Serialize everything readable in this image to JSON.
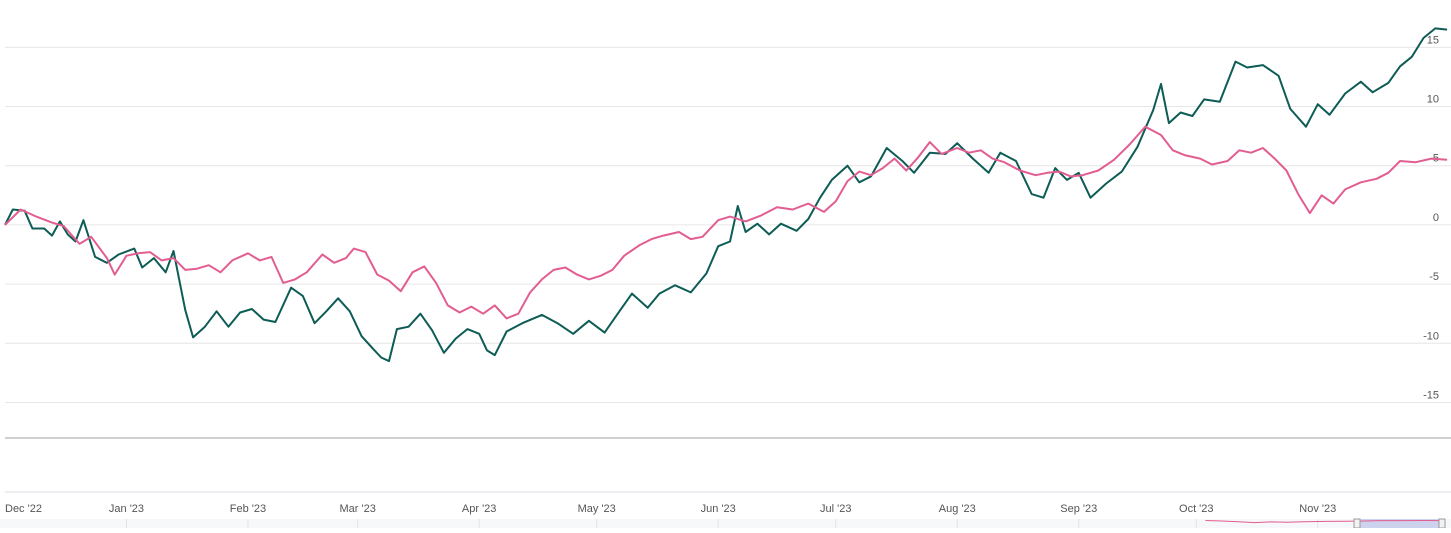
{
  "chart_data": {
    "type": "line",
    "x_tick_labels": [
      "Dec '22",
      "Jan '23",
      "Feb '23",
      "Mar '23",
      "Apr '23",
      "May '23",
      "Jun '23",
      "Jul '23",
      "Aug '23",
      "Sep '23",
      "Oct '23",
      "Nov '23"
    ],
    "y_tick_labels": [
      "15",
      "10",
      "5",
      "0",
      "-5",
      "-10",
      "-15"
    ],
    "ylim": [
      -18,
      19
    ],
    "grid": true,
    "navigator": true,
    "series": [
      {
        "color": "#0d5c55",
        "points": [
          [
            "2022-12-01",
            0
          ],
          [
            "2022-12-03",
            1.3
          ],
          [
            "2022-12-06",
            1.2
          ],
          [
            "2022-12-08",
            -0.3
          ],
          [
            "2022-12-11",
            -0.3
          ],
          [
            "2022-12-13",
            -0.9
          ],
          [
            "2022-12-15",
            0.3
          ],
          [
            "2022-12-17",
            -0.8
          ],
          [
            "2022-12-19",
            -1.4
          ],
          [
            "2022-12-21",
            0.4
          ],
          [
            "2022-12-24",
            -2.7
          ],
          [
            "2022-12-27",
            -3.2
          ],
          [
            "2022-12-30",
            -2.5
          ],
          [
            "2023-01-03",
            -2.0
          ],
          [
            "2023-01-05",
            -3.6
          ],
          [
            "2023-01-08",
            -2.8
          ],
          [
            "2023-01-11",
            -4.0
          ],
          [
            "2023-01-13",
            -2.2
          ],
          [
            "2023-01-16",
            -7.2
          ],
          [
            "2023-01-18",
            -9.5
          ],
          [
            "2023-01-21",
            -8.6
          ],
          [
            "2023-01-24",
            -7.3
          ],
          [
            "2023-01-27",
            -8.6
          ],
          [
            "2023-01-30",
            -7.4
          ],
          [
            "2023-02-02",
            -7.1
          ],
          [
            "2023-02-05",
            -8.0
          ],
          [
            "2023-02-08",
            -8.2
          ],
          [
            "2023-02-12",
            -5.3
          ],
          [
            "2023-02-15",
            -6.0
          ],
          [
            "2023-02-18",
            -8.3
          ],
          [
            "2023-02-21",
            -7.3
          ],
          [
            "2023-02-24",
            -6.2
          ],
          [
            "2023-02-27",
            -7.3
          ],
          [
            "2023-03-02",
            -9.4
          ],
          [
            "2023-03-05",
            -10.5
          ],
          [
            "2023-03-07",
            -11.2
          ],
          [
            "2023-03-09",
            -11.5
          ],
          [
            "2023-03-11",
            -8.8
          ],
          [
            "2023-03-14",
            -8.6
          ],
          [
            "2023-03-17",
            -7.5
          ],
          [
            "2023-03-20",
            -8.9
          ],
          [
            "2023-03-23",
            -10.8
          ],
          [
            "2023-03-26",
            -9.6
          ],
          [
            "2023-03-29",
            -8.8
          ],
          [
            "2023-04-01",
            -9.2
          ],
          [
            "2023-04-03",
            -10.6
          ],
          [
            "2023-04-05",
            -11.0
          ],
          [
            "2023-04-08",
            -9.0
          ],
          [
            "2023-04-12",
            -8.3
          ],
          [
            "2023-04-17",
            -7.6
          ],
          [
            "2023-04-21",
            -8.3
          ],
          [
            "2023-04-25",
            -9.2
          ],
          [
            "2023-04-29",
            -8.1
          ],
          [
            "2023-05-03",
            -9.1
          ],
          [
            "2023-05-07",
            -7.2
          ],
          [
            "2023-05-10",
            -5.8
          ],
          [
            "2023-05-14",
            -7.0
          ],
          [
            "2023-05-17",
            -5.8
          ],
          [
            "2023-05-21",
            -5.1
          ],
          [
            "2023-05-25",
            -5.7
          ],
          [
            "2023-05-29",
            -4.1
          ],
          [
            "2023-06-01",
            -1.8
          ],
          [
            "2023-06-04",
            -1.4
          ],
          [
            "2023-06-06",
            1.6
          ],
          [
            "2023-06-08",
            -0.6
          ],
          [
            "2023-06-11",
            0.1
          ],
          [
            "2023-06-14",
            -0.8
          ],
          [
            "2023-06-17",
            0.1
          ],
          [
            "2023-06-21",
            -0.5
          ],
          [
            "2023-06-24",
            0.5
          ],
          [
            "2023-06-27",
            2.3
          ],
          [
            "2023-06-30",
            3.8
          ],
          [
            "2023-07-04",
            5.0
          ],
          [
            "2023-07-07",
            3.6
          ],
          [
            "2023-07-10",
            4.1
          ],
          [
            "2023-07-14",
            6.5
          ],
          [
            "2023-07-18",
            5.4
          ],
          [
            "2023-07-21",
            4.4
          ],
          [
            "2023-07-25",
            6.1
          ],
          [
            "2023-07-29",
            6.0
          ],
          [
            "2023-08-01",
            6.9
          ],
          [
            "2023-08-05",
            5.6
          ],
          [
            "2023-08-09",
            4.4
          ],
          [
            "2023-08-12",
            6.1
          ],
          [
            "2023-08-16",
            5.4
          ],
          [
            "2023-08-20",
            2.6
          ],
          [
            "2023-08-23",
            2.3
          ],
          [
            "2023-08-26",
            4.8
          ],
          [
            "2023-08-29",
            3.8
          ],
          [
            "2023-09-01",
            4.4
          ],
          [
            "2023-09-04",
            2.3
          ],
          [
            "2023-09-08",
            3.5
          ],
          [
            "2023-09-12",
            4.5
          ],
          [
            "2023-09-16",
            6.6
          ],
          [
            "2023-09-20",
            9.7
          ],
          [
            "2023-09-22",
            11.9
          ],
          [
            "2023-09-24",
            8.6
          ],
          [
            "2023-09-27",
            9.5
          ],
          [
            "2023-09-30",
            9.2
          ],
          [
            "2023-10-03",
            10.6
          ],
          [
            "2023-10-07",
            10.4
          ],
          [
            "2023-10-11",
            13.8
          ],
          [
            "2023-10-14",
            13.3
          ],
          [
            "2023-10-18",
            13.5
          ],
          [
            "2023-10-22",
            12.6
          ],
          [
            "2023-10-25",
            9.8
          ],
          [
            "2023-10-29",
            8.3
          ],
          [
            "2023-11-01",
            10.2
          ],
          [
            "2023-11-04",
            9.3
          ],
          [
            "2023-11-08",
            11.1
          ],
          [
            "2023-11-12",
            12.1
          ],
          [
            "2023-11-15",
            11.2
          ],
          [
            "2023-11-19",
            12.0
          ],
          [
            "2023-11-22",
            13.4
          ],
          [
            "2023-11-25",
            14.2
          ],
          [
            "2023-11-28",
            15.8
          ],
          [
            "2023-12-01",
            16.6
          ],
          [
            "2023-12-04",
            16.5
          ]
        ]
      },
      {
        "color": "#e25d91",
        "points": [
          [
            "2022-12-01",
            0
          ],
          [
            "2022-12-05",
            1.3
          ],
          [
            "2022-12-09",
            0.7
          ],
          [
            "2022-12-13",
            0.2
          ],
          [
            "2022-12-16",
            -0.1
          ],
          [
            "2022-12-20",
            -1.6
          ],
          [
            "2022-12-23",
            -1.0
          ],
          [
            "2022-12-27",
            -2.8
          ],
          [
            "2022-12-29",
            -4.2
          ],
          [
            "2023-01-01",
            -2.6
          ],
          [
            "2023-01-04",
            -2.4
          ],
          [
            "2023-01-07",
            -2.3
          ],
          [
            "2023-01-10",
            -3.0
          ],
          [
            "2023-01-13",
            -2.8
          ],
          [
            "2023-01-16",
            -3.8
          ],
          [
            "2023-01-19",
            -3.7
          ],
          [
            "2023-01-22",
            -3.4
          ],
          [
            "2023-01-25",
            -4.0
          ],
          [
            "2023-01-28",
            -3.0
          ],
          [
            "2023-02-01",
            -2.4
          ],
          [
            "2023-02-04",
            -3.0
          ],
          [
            "2023-02-07",
            -2.7
          ],
          [
            "2023-02-10",
            -4.9
          ],
          [
            "2023-02-13",
            -4.6
          ],
          [
            "2023-02-16",
            -4.0
          ],
          [
            "2023-02-20",
            -2.5
          ],
          [
            "2023-02-23",
            -3.2
          ],
          [
            "2023-02-26",
            -2.8
          ],
          [
            "2023-02-28",
            -2.0
          ],
          [
            "2023-03-03",
            -2.3
          ],
          [
            "2023-03-06",
            -4.2
          ],
          [
            "2023-03-09",
            -4.7
          ],
          [
            "2023-03-12",
            -5.6
          ],
          [
            "2023-03-15",
            -4.0
          ],
          [
            "2023-03-18",
            -3.5
          ],
          [
            "2023-03-21",
            -4.9
          ],
          [
            "2023-03-24",
            -6.8
          ],
          [
            "2023-03-27",
            -7.4
          ],
          [
            "2023-03-30",
            -6.9
          ],
          [
            "2023-04-02",
            -7.5
          ],
          [
            "2023-04-05",
            -6.8
          ],
          [
            "2023-04-08",
            -7.9
          ],
          [
            "2023-04-11",
            -7.5
          ],
          [
            "2023-04-14",
            -5.7
          ],
          [
            "2023-04-17",
            -4.6
          ],
          [
            "2023-04-20",
            -3.8
          ],
          [
            "2023-04-23",
            -3.6
          ],
          [
            "2023-04-26",
            -4.2
          ],
          [
            "2023-04-29",
            -4.6
          ],
          [
            "2023-05-02",
            -4.3
          ],
          [
            "2023-05-05",
            -3.8
          ],
          [
            "2023-05-08",
            -2.6
          ],
          [
            "2023-05-12",
            -1.7
          ],
          [
            "2023-05-15",
            -1.2
          ],
          [
            "2023-05-18",
            -0.9
          ],
          [
            "2023-05-22",
            -0.6
          ],
          [
            "2023-05-25",
            -1.2
          ],
          [
            "2023-05-28",
            -1.0
          ],
          [
            "2023-06-01",
            0.4
          ],
          [
            "2023-06-04",
            0.7
          ],
          [
            "2023-06-08",
            0.3
          ],
          [
            "2023-06-12",
            0.8
          ],
          [
            "2023-06-16",
            1.5
          ],
          [
            "2023-06-20",
            1.3
          ],
          [
            "2023-06-24",
            1.8
          ],
          [
            "2023-06-28",
            1.1
          ],
          [
            "2023-07-01",
            2.0
          ],
          [
            "2023-07-04",
            3.7
          ],
          [
            "2023-07-07",
            4.5
          ],
          [
            "2023-07-10",
            4.2
          ],
          [
            "2023-07-13",
            4.8
          ],
          [
            "2023-07-16",
            5.6
          ],
          [
            "2023-07-19",
            4.6
          ],
          [
            "2023-07-22",
            5.7
          ],
          [
            "2023-07-25",
            7.0
          ],
          [
            "2023-07-28",
            6.0
          ],
          [
            "2023-08-01",
            6.5
          ],
          [
            "2023-08-04",
            6.1
          ],
          [
            "2023-08-07",
            6.3
          ],
          [
            "2023-08-10",
            5.6
          ],
          [
            "2023-08-13",
            5.3
          ],
          [
            "2023-08-17",
            4.6
          ],
          [
            "2023-08-21",
            4.2
          ],
          [
            "2023-08-24",
            4.4
          ],
          [
            "2023-08-27",
            4.5
          ],
          [
            "2023-08-30",
            4.1
          ],
          [
            "2023-09-02",
            4.2
          ],
          [
            "2023-09-06",
            4.6
          ],
          [
            "2023-09-10",
            5.5
          ],
          [
            "2023-09-14",
            6.8
          ],
          [
            "2023-09-18",
            8.3
          ],
          [
            "2023-09-22",
            7.6
          ],
          [
            "2023-09-25",
            6.3
          ],
          [
            "2023-09-28",
            5.9
          ],
          [
            "2023-10-02",
            5.6
          ],
          [
            "2023-10-05",
            5.1
          ],
          [
            "2023-10-09",
            5.4
          ],
          [
            "2023-10-12",
            6.3
          ],
          [
            "2023-10-15",
            6.1
          ],
          [
            "2023-10-18",
            6.5
          ],
          [
            "2023-10-21",
            5.6
          ],
          [
            "2023-10-24",
            4.6
          ],
          [
            "2023-10-27",
            2.6
          ],
          [
            "2023-10-30",
            1.0
          ],
          [
            "2023-11-02",
            2.5
          ],
          [
            "2023-11-05",
            1.8
          ],
          [
            "2023-11-08",
            3.0
          ],
          [
            "2023-11-12",
            3.6
          ],
          [
            "2023-11-16",
            3.9
          ],
          [
            "2023-11-19",
            4.4
          ],
          [
            "2023-11-22",
            5.4
          ],
          [
            "2023-11-26",
            5.3
          ],
          [
            "2023-11-30",
            5.6
          ],
          [
            "2023-12-04",
            5.5
          ]
        ]
      }
    ]
  }
}
